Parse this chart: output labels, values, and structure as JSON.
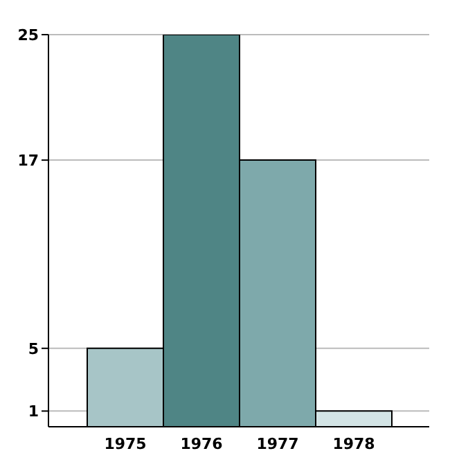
{
  "chart_data": {
    "type": "bar",
    "categories": [
      "1975",
      "1976",
      "1977",
      "1978"
    ],
    "values": [
      5,
      25,
      17,
      1
    ],
    "colors": [
      "#a7c5c7",
      "#4f8585",
      "#7ea9ab",
      "#d3e4e5"
    ],
    "ylim": [
      0,
      25
    ],
    "yticks": [
      1,
      5,
      17,
      25
    ],
    "grid": "y"
  }
}
